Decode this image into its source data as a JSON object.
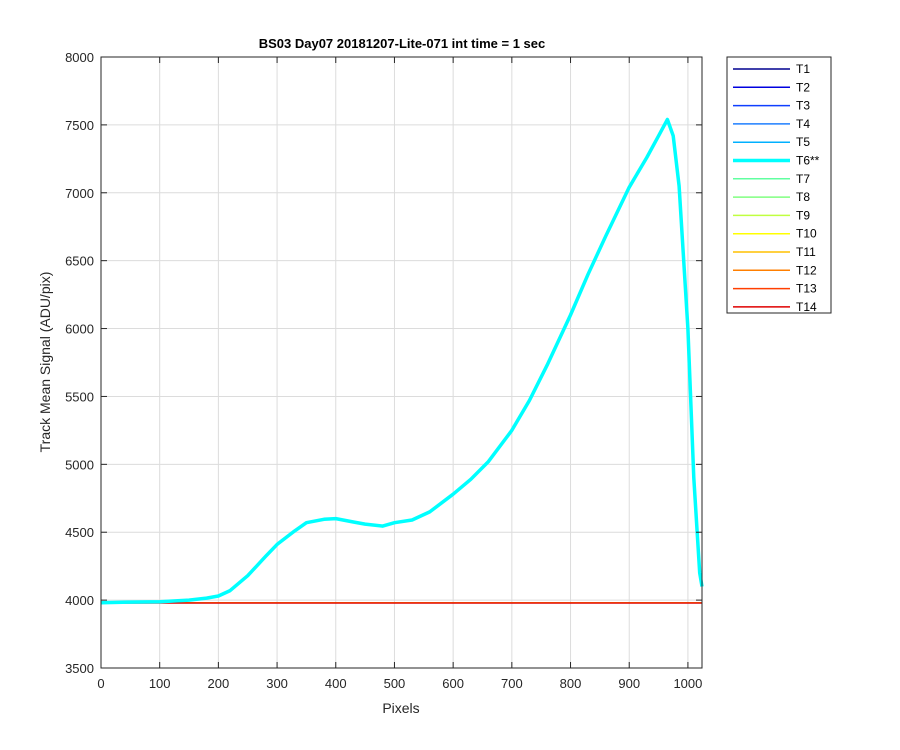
{
  "chart_data": {
    "type": "line",
    "title": "BS03 Day07 20181207-Lite-071 int time = 1 sec",
    "xlabel": "Pixels",
    "ylabel": "Track Mean Signal (ADU/pix)",
    "xlim": [
      0,
      1024
    ],
    "ylim": [
      3500,
      8000
    ],
    "xticks": [
      0,
      100,
      200,
      300,
      400,
      500,
      600,
      700,
      800,
      900,
      1000
    ],
    "yticks": [
      3500,
      4000,
      4500,
      5000,
      5500,
      6000,
      6500,
      7000,
      7500,
      8000
    ],
    "grid": true,
    "legend_position": "outside-right",
    "series": [
      {
        "name": "T1",
        "color": "#00008f",
        "width": "normal",
        "x": [
          0,
          1024
        ],
        "y": [
          3980,
          3980
        ]
      },
      {
        "name": "T2",
        "color": "#0000df",
        "width": "normal",
        "x": [
          0,
          1024
        ],
        "y": [
          3980,
          3980
        ]
      },
      {
        "name": "T3",
        "color": "#0f3fff",
        "width": "normal",
        "x": [
          0,
          1024
        ],
        "y": [
          3980,
          3980
        ]
      },
      {
        "name": "T4",
        "color": "#1f7fff",
        "width": "normal",
        "x": [
          0,
          1024
        ],
        "y": [
          3980,
          3980
        ]
      },
      {
        "name": "T5",
        "color": "#00b0ff",
        "width": "normal",
        "x": [
          0,
          1024
        ],
        "y": [
          3980,
          3980
        ]
      },
      {
        "name": "T6**",
        "color": "#00ffff",
        "width": "thick",
        "x": [
          0,
          50,
          100,
          150,
          180,
          200,
          220,
          250,
          280,
          300,
          330,
          350,
          380,
          400,
          430,
          450,
          480,
          500,
          530,
          560,
          600,
          630,
          660,
          700,
          730,
          760,
          800,
          830,
          860,
          900,
          930,
          950,
          965,
          975,
          985,
          1000,
          1010,
          1020,
          1024
        ],
        "y": [
          3980,
          3985,
          3988,
          4000,
          4015,
          4030,
          4070,
          4180,
          4320,
          4410,
          4510,
          4570,
          4595,
          4600,
          4575,
          4560,
          4545,
          4570,
          4590,
          4650,
          4780,
          4890,
          5020,
          5250,
          5470,
          5730,
          6100,
          6400,
          6680,
          7040,
          7260,
          7420,
          7540,
          7420,
          7050,
          6000,
          4900,
          4200,
          4100
        ]
      },
      {
        "name": "T7",
        "color": "#60ffa0",
        "width": "normal",
        "x": [
          0,
          1024
        ],
        "y": [
          3980,
          3980
        ]
      },
      {
        "name": "T8",
        "color": "#80ff80",
        "width": "normal",
        "x": [
          0,
          1024
        ],
        "y": [
          3980,
          3980
        ]
      },
      {
        "name": "T9",
        "color": "#c0ff40",
        "width": "normal",
        "x": [
          0,
          1024
        ],
        "y": [
          3980,
          3980
        ]
      },
      {
        "name": "T10",
        "color": "#ffff00",
        "width": "normal",
        "x": [
          0,
          1024
        ],
        "y": [
          3980,
          3980
        ]
      },
      {
        "name": "T11",
        "color": "#ffc000",
        "width": "normal",
        "x": [
          0,
          1024
        ],
        "y": [
          3980,
          3980
        ]
      },
      {
        "name": "T12",
        "color": "#ff7f00",
        "width": "normal",
        "x": [
          0,
          1024
        ],
        "y": [
          3980,
          3980
        ]
      },
      {
        "name": "T13",
        "color": "#ff3f00",
        "width": "normal",
        "x": [
          0,
          1024
        ],
        "y": [
          3980,
          3980
        ]
      },
      {
        "name": "T14",
        "color": "#df0000",
        "width": "normal",
        "x": [
          0,
          1024
        ],
        "y": [
          3978,
          3978
        ]
      }
    ]
  }
}
